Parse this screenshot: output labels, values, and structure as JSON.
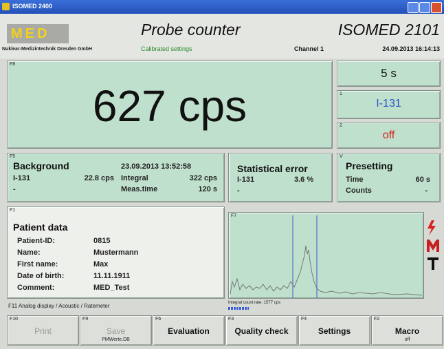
{
  "window": {
    "title": "ISOMED 2400"
  },
  "header": {
    "logo": "MED",
    "company": "Nuklear-Medizintechnik Dresden GmbH",
    "mode": "Probe counter",
    "subtitle": "Calibrated settings",
    "device": "ISOMED 2101",
    "channel": "Channel 1",
    "datetime": "24.09.2013 16:14:13"
  },
  "main_display": {
    "key": "F8",
    "reading": "627 cps"
  },
  "side_panels": [
    {
      "label": "5 s"
    },
    {
      "key": "1",
      "label": "I-131"
    },
    {
      "key": "2",
      "label": "off"
    }
  ],
  "background": {
    "key": "F5",
    "title": "Background",
    "timestamp": "23.09.2013 13:52:58",
    "nuclide": "I-131",
    "rate": "22.8 cps",
    "dash": "-",
    "integral_label": "Integral",
    "integral_value": "322 cps",
    "time_label": "Meas.time",
    "time_value": "120 s"
  },
  "statistical_error": {
    "title": "Statistical error",
    "nuclide": "I-131",
    "value": "3.6 %",
    "dash": "-"
  },
  "presetting": {
    "key": "V",
    "title": "Presetting",
    "rows": [
      [
        "Time",
        "60 s"
      ],
      [
        "Counts",
        "-"
      ]
    ]
  },
  "patient": {
    "key": "F1",
    "title": "Patient data",
    "fields": [
      [
        "Patient-ID:",
        "0815"
      ],
      [
        "Name:",
        "Mustermann"
      ],
      [
        "First name:",
        "Max"
      ],
      [
        "Date of birth:",
        "11.11.1911"
      ],
      [
        "Comment:",
        "MED_Test"
      ]
    ]
  },
  "spectrum": {
    "key": "F7",
    "caption": "Integral count rate: 1577 cps"
  },
  "status": "F11 Analog display / Acoustic / Ratemeter",
  "buttons": [
    {
      "key": "F10",
      "label": "Print"
    },
    {
      "key": "F9",
      "label": "Save",
      "sublabel": "PMWerte.DB"
    },
    {
      "key": "F6",
      "label": "Evaluation"
    },
    {
      "key": "F3",
      "label": "Quality check"
    },
    {
      "key": "F4",
      "label": "Settings"
    },
    {
      "key": "F2",
      "label": "Macro",
      "sublabel": "off"
    }
  ]
}
